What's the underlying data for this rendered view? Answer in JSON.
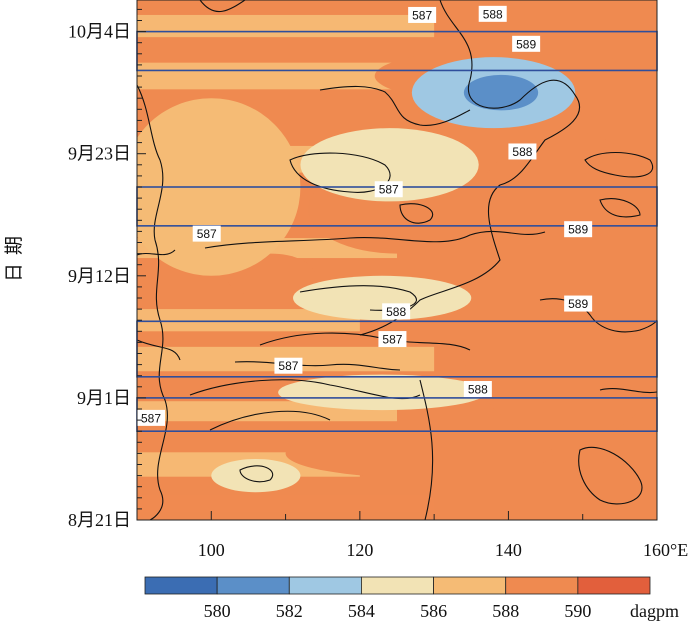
{
  "chart_data": {
    "type": "heatmap",
    "title": "",
    "xlabel": "",
    "ylabel": "日期",
    "xlim": [
      90,
      160
    ],
    "ylim_days": [
      0,
      45
    ],
    "x_ticks": [
      {
        "value": 100,
        "label": "100"
      },
      {
        "value": 120,
        "label": "120"
      },
      {
        "value": 140,
        "label": "140"
      },
      {
        "value": 160,
        "label": "160°E"
      }
    ],
    "y_ticks": [
      {
        "day": 0,
        "label": "8月21日"
      },
      {
        "day": 11,
        "label": "9月1日"
      },
      {
        "day": 22,
        "label": "9月12日"
      },
      {
        "day": 33,
        "label": "9月23日"
      },
      {
        "day": 44,
        "label": "10月4日"
      }
    ],
    "colorbar": {
      "levels": [
        578,
        580,
        582,
        584,
        586,
        588,
        590,
        592
      ],
      "tick_labels": [
        "580",
        "582",
        "584",
        "586",
        "588",
        "590"
      ],
      "unit": "dagpm",
      "colors": [
        "#3b6db3",
        "#5b8fc8",
        "#9fc8e3",
        "#f2e3b5",
        "#f5bb75",
        "#ef8a50",
        "#e25f3c"
      ]
    },
    "boxes": [
      {
        "start_day": 8,
        "end_day": 11
      },
      {
        "start_day": 12.9,
        "end_day": 17.9
      },
      {
        "start_day": 26.5,
        "end_day": 30
      },
      {
        "start_day": 40.5,
        "end_day": 44
      }
    ],
    "contour_labels": [
      {
        "text": "587",
        "lon": 126.5,
        "day": 45.5
      },
      {
        "text": "588",
        "lon": 136,
        "day": 45.6
      },
      {
        "text": "589",
        "lon": 140.5,
        "day": 42.9
      },
      {
        "text": "588",
        "lon": 140,
        "day": 33.2
      },
      {
        "text": "587",
        "lon": 122,
        "day": 29.8
      },
      {
        "text": "587",
        "lon": 97.5,
        "day": 25.8
      },
      {
        "text": "589",
        "lon": 147.5,
        "day": 26.2
      },
      {
        "text": "589",
        "lon": 147.5,
        "day": 19.5
      },
      {
        "text": "588",
        "lon": 123,
        "day": 18.8
      },
      {
        "text": "587",
        "lon": 122.5,
        "day": 16.3
      },
      {
        "text": "587",
        "lon": 108.5,
        "day": 13.9
      },
      {
        "text": "588",
        "lon": 134,
        "day": 11.8
      },
      {
        "text": "587",
        "lon": 90,
        "day": 9.2
      }
    ],
    "field_features": [
      {
        "level": 589.5,
        "lon": 140,
        "day": 40,
        "rx": 18,
        "ry": 2.5
      },
      {
        "level": 589.5,
        "lon": 152,
        "day": 18,
        "rx": 12,
        "ry": 6
      },
      {
        "level": 589,
        "lon": 148,
        "day": 21,
        "rx": 16,
        "ry": 14
      },
      {
        "level": 589.5,
        "lon": 128,
        "day": 6,
        "rx": 18,
        "ry": 2.2
      },
      {
        "level": 589.5,
        "lon": 108,
        "day": 22,
        "rx": 6,
        "ry": 2
      },
      {
        "level": 589,
        "lon": 125,
        "day": 28,
        "rx": 12,
        "ry": 4
      },
      {
        "level": 585,
        "lon": 124,
        "day": 32,
        "rx": 12,
        "ry": 3.3
      },
      {
        "level": 585.5,
        "lon": 123,
        "day": 20,
        "rx": 12,
        "ry": 2
      },
      {
        "level": 585.5,
        "lon": 123,
        "day": 11.5,
        "rx": 14,
        "ry": 1.6
      },
      {
        "level": 585.5,
        "lon": 106,
        "day": 4,
        "rx": 6,
        "ry": 1.5
      },
      {
        "level": 587,
        "lon": 100,
        "day": 30,
        "rx": 12,
        "ry": 8
      },
      {
        "level": 582,
        "lon": 138,
        "day": 38.5,
        "rx": 11,
        "ry": 3.2
      },
      {
        "level": 580,
        "lon": 139,
        "day": 38.5,
        "rx": 5,
        "ry": 1.6
      }
    ]
  }
}
